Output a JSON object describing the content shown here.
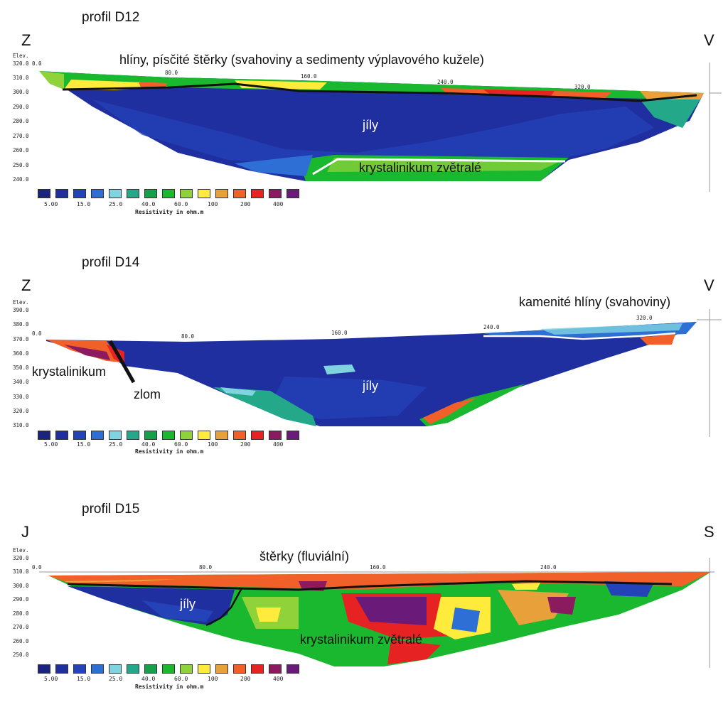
{
  "legend": {
    "colors": [
      "#1a237e",
      "#1f2fa0",
      "#2443b8",
      "#2e6fd6",
      "#7fd4e0",
      "#24a88a",
      "#16a04a",
      "#19b82e",
      "#8fd23a",
      "#ffeb3b",
      "#e8a03a",
      "#f2602a",
      "#e62222",
      "#8b1a5e",
      "#6a1b7a"
    ],
    "labels": [
      "5.00",
      "15.0",
      "25.0",
      "40.0",
      "60.0",
      "100",
      "200",
      "400"
    ],
    "title": "Resistivity in ohm.m"
  },
  "profiles": [
    {
      "title": "profil D12",
      "left_dir": "Z",
      "right_dir": "V",
      "elev_label": "Elev.",
      "elevations": [
        "320.0",
        "310.0",
        "300.0",
        "290.0",
        "280.0",
        "270.0",
        "260.0",
        "250.0",
        "240.0"
      ],
      "distances": [
        "0.0",
        "80.0",
        "160.0",
        "240.0",
        "320.0"
      ],
      "annotations": {
        "top": "hlíny, písčité štěrky (svahoviny a sedimenty výplavového kužele)",
        "body": "jíly",
        "bottom": "krystalinikum zvětralé"
      }
    },
    {
      "title": "profil D14",
      "left_dir": "Z",
      "right_dir": "V",
      "elev_label": "Elev.",
      "elevations": [
        "390.0",
        "380.0",
        "370.0",
        "360.0",
        "350.0",
        "340.0",
        "330.0",
        "320.0",
        "310.0"
      ],
      "distances": [
        "0.0",
        "80.0",
        "160.0",
        "240.0",
        "320.0"
      ],
      "annotations": {
        "top": "kamenité hlíny (svahoviny)",
        "body": "jíly",
        "left": "krystalinikum",
        "fault": "zlom"
      }
    },
    {
      "title": "profil D15",
      "left_dir": "J",
      "right_dir": "S",
      "elev_label": "Elev.",
      "elevations": [
        "320.0",
        "310.0",
        "300.0",
        "290.0",
        "280.0",
        "270.0",
        "260.0",
        "250.0"
      ],
      "distances": [
        "0.0",
        "80.0",
        "160.0",
        "240.0"
      ],
      "annotations": {
        "top": "štěrky (fluviální)",
        "body": "jíly",
        "bottom": "krystalinikum zvětralé"
      }
    }
  ]
}
